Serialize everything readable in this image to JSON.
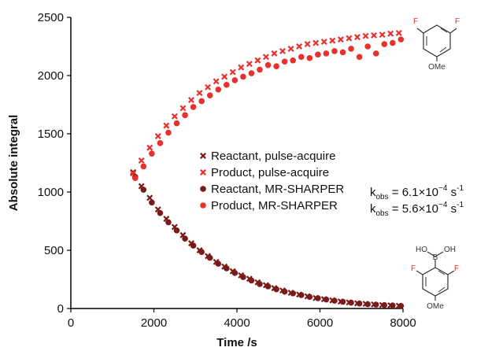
{
  "chart_data": {
    "type": "scatter",
    "title": "",
    "xlabel": "Time /s",
    "ylabel": "Absolute integral",
    "xlim": [
      0,
      8000
    ],
    "ylim": [
      0,
      2500
    ],
    "xticks": [
      0,
      2000,
      4000,
      6000,
      8000
    ],
    "yticks": [
      0,
      500,
      1000,
      1500,
      2000,
      2500
    ],
    "grid": false,
    "legend_position": "center-right",
    "series": [
      {
        "name": "Reactant, pulse-acquire",
        "marker": "x",
        "color": "#7a1a1a",
        "x": [
          1500,
          1700,
          1900,
          2100,
          2300,
          2500,
          2700,
          2900,
          3100,
          3300,
          3500,
          3700,
          3900,
          4100,
          4300,
          4500,
          4700,
          4900,
          5100,
          5300,
          5500,
          5700,
          5900,
          6100,
          6300,
          6500,
          6700,
          6900,
          7100,
          7300,
          7500,
          7700,
          7900
        ],
        "y": [
          1170,
          1050,
          950,
          850,
          770,
          700,
          630,
          560,
          500,
          450,
          400,
          360,
          320,
          285,
          255,
          225,
          200,
          175,
          155,
          135,
          120,
          105,
          90,
          80,
          70,
          60,
          52,
          45,
          40,
          35,
          30,
          27,
          24
        ]
      },
      {
        "name": "Product, pulse-acquire",
        "marker": "x",
        "color": "#e8302c",
        "x": [
          1500,
          1700,
          1900,
          2100,
          2300,
          2500,
          2700,
          2900,
          3100,
          3300,
          3500,
          3700,
          3900,
          4100,
          4300,
          4500,
          4700,
          4900,
          5100,
          5300,
          5500,
          5700,
          5900,
          6100,
          6300,
          6500,
          6700,
          6900,
          7100,
          7300,
          7500,
          7700,
          7900
        ],
        "y": [
          1160,
          1270,
          1380,
          1480,
          1570,
          1650,
          1720,
          1790,
          1850,
          1900,
          1950,
          1990,
          2030,
          2070,
          2100,
          2130,
          2160,
          2190,
          2210,
          2230,
          2250,
          2270,
          2280,
          2290,
          2300,
          2310,
          2320,
          2330,
          2340,
          2345,
          2350,
          2360,
          2365
        ]
      },
      {
        "name": "Reactant, MR-SHARPER",
        "marker": "circle",
        "color": "#7a1a1a",
        "x": [
          1550,
          1750,
          1950,
          2150,
          2350,
          2550,
          2750,
          2950,
          3150,
          3350,
          3550,
          3750,
          3950,
          4150,
          4350,
          4550,
          4750,
          4950,
          5150,
          5350,
          5550,
          5750,
          5950,
          6150,
          6350,
          6550,
          6750,
          6950,
          7150,
          7350,
          7550,
          7750,
          7950
        ],
        "y": [
          1130,
          1020,
          910,
          820,
          740,
          670,
          600,
          540,
          485,
          435,
          385,
          345,
          305,
          270,
          240,
          210,
          190,
          165,
          145,
          130,
          115,
          100,
          88,
          77,
          67,
          58,
          50,
          43,
          37,
          33,
          29,
          26,
          22
        ]
      },
      {
        "name": "Product, MR-SHARPER",
        "marker": "circle",
        "color": "#e8302c",
        "x": [
          1550,
          1750,
          1950,
          2150,
          2350,
          2550,
          2750,
          2950,
          3150,
          3350,
          3550,
          3750,
          3950,
          4150,
          4350,
          4550,
          4750,
          4950,
          5150,
          5350,
          5550,
          5750,
          5950,
          6150,
          6350,
          6550,
          6750,
          6950,
          7150,
          7350,
          7550,
          7750,
          7950
        ],
        "y": [
          1120,
          1220,
          1330,
          1420,
          1510,
          1590,
          1660,
          1730,
          1780,
          1830,
          1880,
          1920,
          1960,
          1990,
          2020,
          2050,
          2090,
          2080,
          2120,
          2130,
          2160,
          2150,
          2180,
          2190,
          2210,
          2200,
          2230,
          2160,
          2250,
          2190,
          2270,
          2280,
          2310
        ]
      }
    ],
    "annotations": [
      {
        "label_main": "k",
        "label_sub": "obs",
        "label_rest": " = 6.1×10",
        "label_sup": "−4",
        "label_unit": " s",
        "label_unit_sup": "-1"
      },
      {
        "label_main": "k",
        "label_sub": "obs",
        "label_rest": " = 5.6×10",
        "label_sup": "−4",
        "label_unit": " s",
        "label_unit_sup": "-1"
      }
    ],
    "structures": {
      "top": {
        "F_left": "F",
        "F_right": "F",
        "OMe": "OMe"
      },
      "bottom": {
        "HO": "HO",
        "B": "B",
        "OH": "OH",
        "F_left": "F",
        "F_right": "F",
        "OMe": "OMe"
      }
    }
  }
}
